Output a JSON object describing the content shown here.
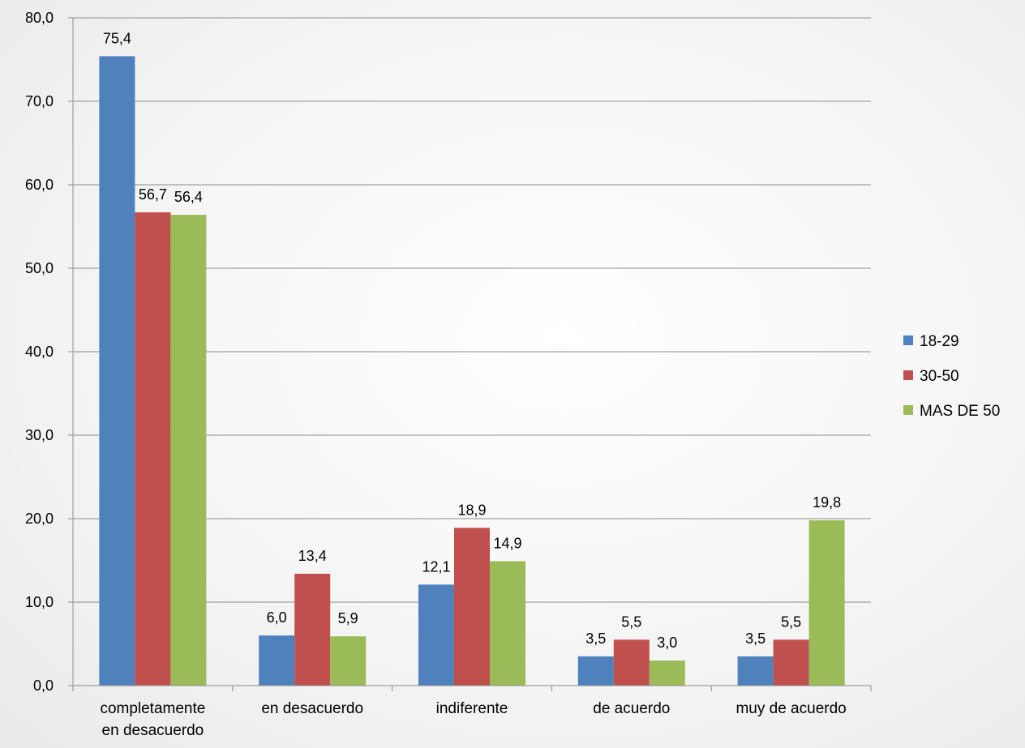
{
  "chart_data": {
    "type": "bar",
    "categories": [
      [
        "completamente",
        "en desacuerdo"
      ],
      [
        "en desacuerdo"
      ],
      [
        "indiferente"
      ],
      [
        "de acuerdo"
      ],
      [
        "muy de acuerdo"
      ]
    ],
    "series": [
      {
        "name": "18-29",
        "color": "#4f81bd",
        "values": [
          75.4,
          6.0,
          12.1,
          3.5,
          3.5
        ],
        "labels": [
          "75,4",
          "6,0",
          "12,1",
          "3,5",
          "3,5"
        ]
      },
      {
        "name": "30-50",
        "color": "#c0504d",
        "values": [
          56.7,
          13.4,
          18.9,
          5.5,
          5.5
        ],
        "labels": [
          "56,7",
          "13,4",
          "18,9",
          "5,5",
          "5,5"
        ]
      },
      {
        "name": "MAS DE 50",
        "color": "#9bbb59",
        "values": [
          56.4,
          5.9,
          14.9,
          3.0,
          19.8
        ],
        "labels": [
          "56,4",
          "5,9",
          "14,9",
          "3,0",
          "19,8"
        ]
      }
    ],
    "y_ticks": [
      "0,0",
      "10,0",
      "20,0",
      "30,0",
      "40,0",
      "50,0",
      "60,0",
      "70,0",
      "80,0"
    ],
    "ylim": [
      0,
      80
    ],
    "grid": true,
    "legend_position": "right"
  }
}
